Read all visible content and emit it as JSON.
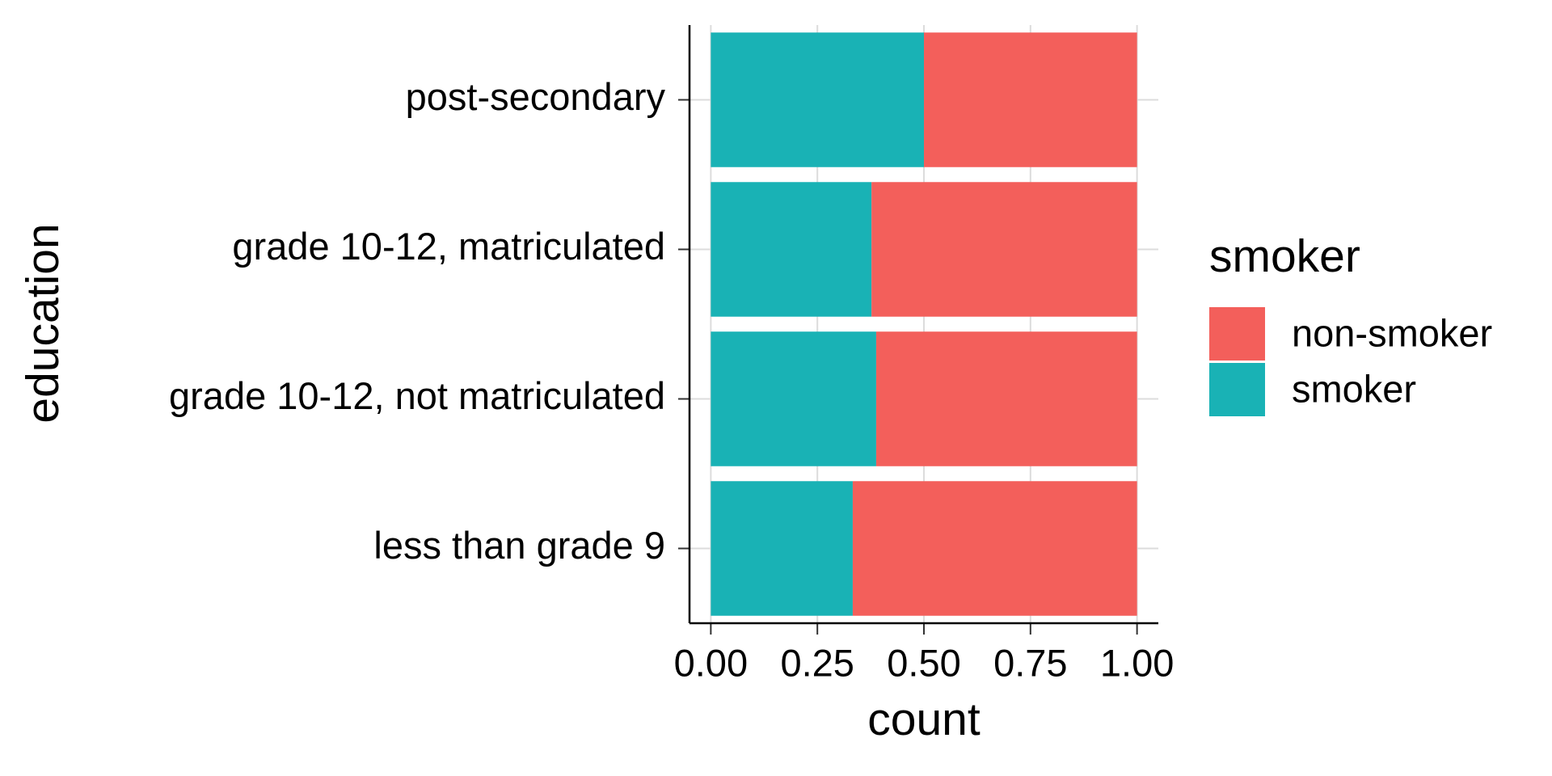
{
  "chart_data": {
    "type": "stacked-bar-horizontal",
    "x_label": "count",
    "y_label": "education",
    "legend_title": "smoker",
    "categories": [
      "post-secondary",
      "grade 10-12, matriculated",
      "grade 10-12, not matriculated",
      "less than grade 9"
    ],
    "series": [
      {
        "name": "non-smoker",
        "color": "#f35f5b",
        "values": [
          0.5,
          0.623,
          0.612,
          0.667
        ]
      },
      {
        "name": "smoker",
        "color": "#19b2b5",
        "values": [
          0.5,
          0.377,
          0.388,
          0.333
        ]
      }
    ],
    "xlim": [
      -0.05,
      1.05
    ],
    "xticks": [
      {
        "value": 0,
        "label": "0.00"
      },
      {
        "value": 0.25,
        "label": "0.25"
      },
      {
        "value": 0.5,
        "label": "0.50"
      },
      {
        "value": 0.75,
        "label": "0.75"
      },
      {
        "value": 1,
        "label": "1.00"
      }
    ],
    "grid": true,
    "legend": "right"
  }
}
